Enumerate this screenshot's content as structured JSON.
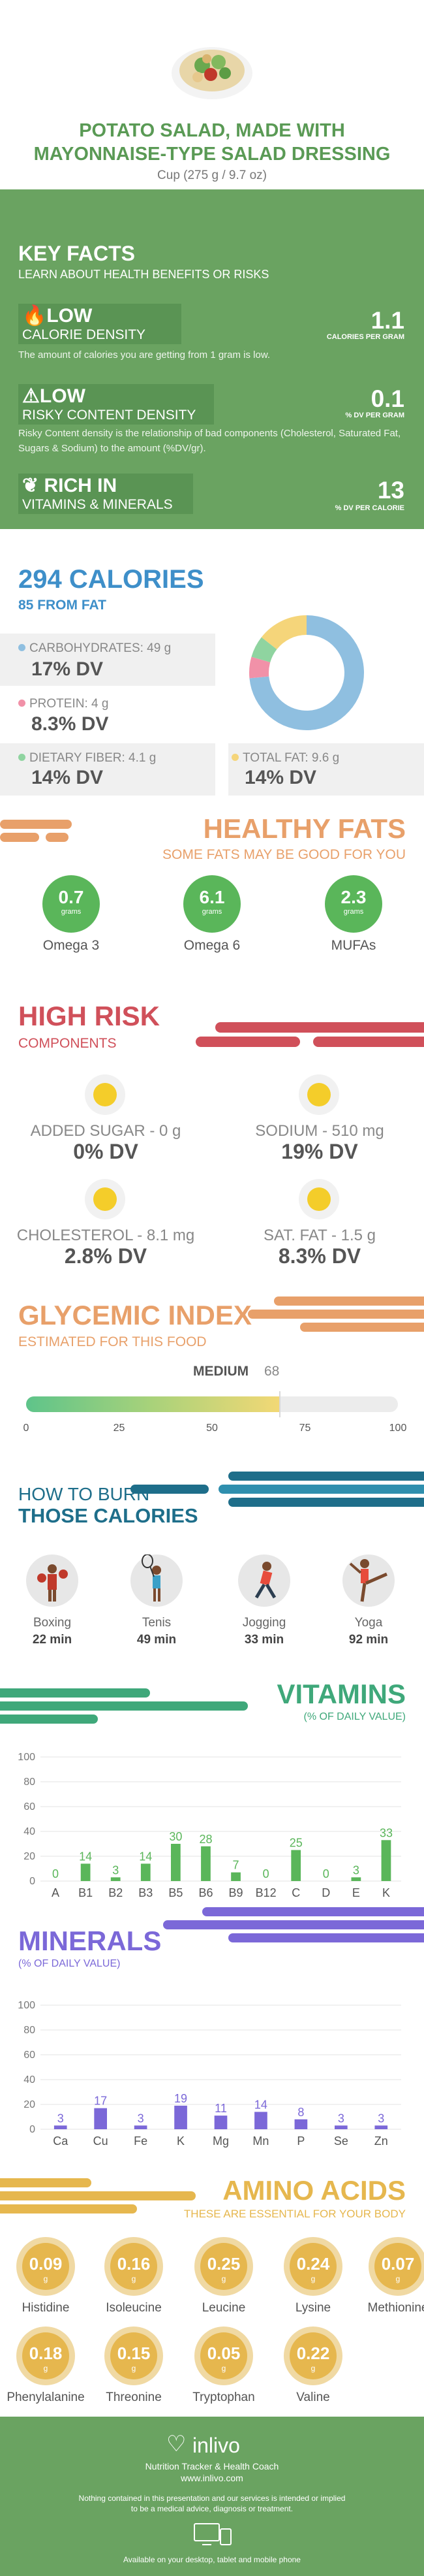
{
  "header": {
    "title_line1": "POTATO SALAD, MADE WITH",
    "title_line2": "MAYONNAISE-TYPE SALAD DRESSING",
    "serving": "Cup (275 g / 9.7 oz)"
  },
  "key_facts": {
    "title": "KEY FACTS",
    "subtitle": "LEARN ABOUT HEALTH BENEFITS OR RISKS",
    "items": [
      {
        "level": "LOW",
        "name": "CALORIE DENSITY",
        "value": "1.1",
        "unit": "CALORIES PER GRAM",
        "desc": "The amount of calories you are getting from 1 gram is low.",
        "icon": "flame-icon"
      },
      {
        "level": "LOW",
        "name": "RISKY CONTENT DENSITY",
        "value": "0.1",
        "unit": "% DV PER GRAM",
        "desc": "Risky Content density is the relationship of bad components (Cholesterol, Saturated Fat, Sugars & Sodium) to the amount (%DV/gr).",
        "icon": "warning-icon"
      },
      {
        "level": "RICH IN",
        "name": "VITAMINS & MINERALS",
        "value": "13",
        "unit": "% DV PER CALORIE",
        "desc": "",
        "icon": "leaf-icon"
      }
    ]
  },
  "calories": {
    "title": "294 CALORIES",
    "subtitle": "85 FROM FAT",
    "macros": [
      {
        "label": "CARBOHYDRATES: 49 g",
        "dv": "17% DV",
        "color": "#8fbfe0"
      },
      {
        "label": "PROTEIN: 4 g",
        "dv": "8.3% DV",
        "color": "#f191a8"
      },
      {
        "label": "DIETARY FIBER: 4.1 g",
        "dv": "14% DV",
        "color": "#8fd4a0"
      },
      {
        "label": "TOTAL FAT: 9.6 g",
        "dv": "14% DV",
        "color": "#f5d57a"
      }
    ],
    "donut": [
      {
        "name": "carbs",
        "value": 49,
        "color": "#8fbfe0"
      },
      {
        "name": "protein",
        "value": 4,
        "color": "#f191a8"
      },
      {
        "name": "fiber",
        "value": 4.1,
        "color": "#8fd4a0"
      },
      {
        "name": "fat",
        "value": 9.6,
        "color": "#f5d57a"
      }
    ]
  },
  "healthy_fats": {
    "title": "HEALTHY FATS",
    "subtitle": "SOME FATS MAY BE GOOD FOR YOU",
    "items": [
      {
        "value": "0.7",
        "unit": "grams",
        "label": "Omega 3"
      },
      {
        "value": "6.1",
        "unit": "grams",
        "label": "Omega 6"
      },
      {
        "value": "2.3",
        "unit": "grams",
        "label": "MUFAs"
      }
    ]
  },
  "high_risk": {
    "title": "HIGH RISK",
    "subtitle": "COMPONENTS",
    "items": [
      {
        "label": "ADDED SUGAR - 0 g",
        "dv": "0% DV"
      },
      {
        "label": "SODIUM - 510 mg",
        "dv": "19% DV"
      },
      {
        "label": "CHOLESTEROL - 8.1 mg",
        "dv": "2.8% DV"
      },
      {
        "label": "SAT. FAT - 1.5 g",
        "dv": "8.3% DV"
      }
    ]
  },
  "glycemic": {
    "title": "GLYCEMIC INDEX",
    "subtitle": "ESTIMATED FOR THIS FOOD",
    "level": "MEDIUM",
    "value": "68",
    "fraction": 0.68,
    "ticks": [
      "0",
      "25",
      "50",
      "75",
      "100"
    ]
  },
  "burn": {
    "title1": "HOW TO BURN",
    "title2": "THOSE CALORIES",
    "items": [
      {
        "name": "Boxing",
        "min": "22 min",
        "icon": "boxing-icon"
      },
      {
        "name": "Tenis",
        "min": "49 min",
        "icon": "tennis-icon"
      },
      {
        "name": "Jogging",
        "min": "33 min",
        "icon": "jogging-icon"
      },
      {
        "name": "Yoga",
        "min": "92 min",
        "icon": "yoga-icon"
      }
    ]
  },
  "vitamins": {
    "title": "VITAMINS",
    "subtitle": "(% OF DAILY VALUE)"
  },
  "minerals": {
    "title": "MINERALS",
    "subtitle": "(% OF DAILY VALUE)"
  },
  "chart_data": [
    {
      "type": "bar",
      "categories": [
        "A",
        "B1",
        "B2",
        "B3",
        "B5",
        "B6",
        "B9",
        "B12",
        "C",
        "D",
        "E",
        "K"
      ],
      "values": [
        0,
        14,
        3,
        14,
        30,
        28,
        7,
        0,
        25,
        0,
        3,
        33
      ],
      "ylim": [
        0,
        100
      ],
      "yticks": [
        "0",
        "20",
        "40",
        "60",
        "80",
        "100"
      ],
      "color": "#5ab65a",
      "title": "",
      "xlabel": "",
      "ylabel": "",
      "grid": true
    },
    {
      "type": "bar",
      "categories": [
        "Ca",
        "Cu",
        "Fe",
        "K",
        "Mg",
        "Mn",
        "P",
        "Se",
        "Zn"
      ],
      "values": [
        3,
        17,
        3,
        19,
        11,
        14,
        8,
        3,
        3
      ],
      "ylim": [
        0,
        100
      ],
      "yticks": [
        "0",
        "20",
        "40",
        "60",
        "80",
        "100"
      ],
      "color": "#7b68d8",
      "title": "",
      "xlabel": "",
      "ylabel": "",
      "grid": true
    }
  ],
  "amino": {
    "title": "AMINO ACIDS",
    "subtitle": "THESE ARE ESSENTIAL FOR YOUR BODY",
    "items": [
      {
        "value": "0.09",
        "unit": "g",
        "label": "Histidine"
      },
      {
        "value": "0.16",
        "unit": "g",
        "label": "Isoleucine"
      },
      {
        "value": "0.25",
        "unit": "g",
        "label": "Leucine"
      },
      {
        "value": "0.24",
        "unit": "g",
        "label": "Lysine"
      },
      {
        "value": "0.07",
        "unit": "g",
        "label": "Methionine"
      },
      {
        "value": "0.18",
        "unit": "g",
        "label": "Phenylalanine"
      },
      {
        "value": "0.15",
        "unit": "g",
        "label": "Threonine"
      },
      {
        "value": "0.05",
        "unit": "g",
        "label": "Tryptophan"
      },
      {
        "value": "0.22",
        "unit": "g",
        "label": "Valine"
      }
    ]
  },
  "footer": {
    "brand": "inlivo",
    "tagline": "Nutrition Tracker & Health Coach",
    "url": "www.inlivo.com",
    "disclaimer1": "Nothing contained in this presentation and our services is intended or implied",
    "disclaimer2": "to be a medical advice, diagnosis or treatment.",
    "available": "Available on your desktop, tablet and mobile phone"
  },
  "colors": {
    "green": "#6aa361",
    "blue": "#3e8fc9",
    "orange": "#e8a06a",
    "red": "#d0505a",
    "purple": "#7b68d8",
    "gold": "#e6b74e",
    "teal": "#1e6e8a"
  }
}
